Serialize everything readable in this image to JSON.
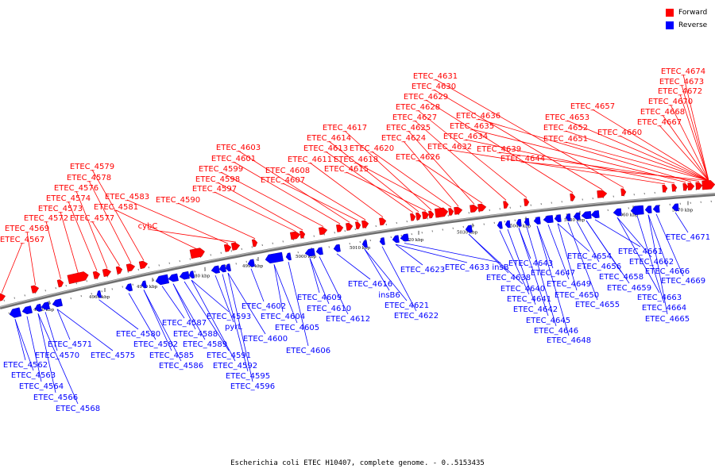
{
  "legend": {
    "forward_label": "Forward",
    "reverse_label": "Reverse",
    "forward_color": "#ff0000",
    "reverse_color": "#0000ff"
  },
  "caption": "Escherichia coli ETEC H10407, complete genome. - 0..5153435",
  "forward_labels": [
    "ETEC_4567",
    "ETEC_4569",
    "ETEC_4572",
    "ETEC_4573",
    "ETEC_4574",
    "ETEC_4576",
    "ETEC_4577",
    "ETEC_4578",
    "ETEC_4579",
    "ETEC_4581",
    "ETEC_4583",
    "cybC",
    "ETEC_4590",
    "ETEC_4597",
    "ETEC_4598",
    "ETEC_4599",
    "ETEC_4601",
    "ETEC_4603",
    "ETEC_4607",
    "ETEC_4608",
    "ETEC_4611",
    "ETEC_4613",
    "ETEC_4614",
    "ETEC_4615",
    "ETEC_4617",
    "ETEC_4618",
    "ETEC_4620",
    "ETEC_4624",
    "ETEC_4625",
    "ETEC_4626",
    "ETEC_4627",
    "ETEC_4628",
    "ETEC_4629",
    "ETEC_4630",
    "ETEC_4631",
    "ETEC_4632",
    "ETEC_4634",
    "ETEC_4635",
    "ETEC_4636",
    "ETEC_4639",
    "ETEC_4644",
    "ETEC_4651",
    "ETEC_4652",
    "ETEC_4653",
    "ETEC_4657",
    "ETEC_4660",
    "ETEC_4667",
    "ETEC_4668",
    "ETEC_4670",
    "ETEC_4672",
    "ETEC_4673",
    "ETEC_4674"
  ],
  "reverse_labels": [
    "ETEC_4562",
    "ETEC_4563",
    "ETEC_4564",
    "ETEC_4566",
    "ETEC_4568",
    "ETEC_4570",
    "ETEC_4571",
    "ETEC_4575",
    "ETEC_4580",
    "ETEC_4582",
    "ETEC_4585",
    "ETEC_4586",
    "ETEC_4587",
    "ETEC_4588",
    "ETEC_4589",
    "ETEC_4591",
    "ETEC_4592",
    "ETEC_4593",
    "pyrL",
    "ETEC_4595",
    "ETEC_4596",
    "ETEC_4600",
    "ETEC_4602",
    "ETEC_4604",
    "ETEC_4605",
    "ETEC_4606",
    "ETEC_4609",
    "ETEC_4610",
    "ETEC_4612",
    "ETEC_4616",
    "insB6",
    "ETEC_4621",
    "ETEC_4622",
    "ETEC_4623",
    "ETEC_4633",
    "insB",
    "ETEC_4638",
    "ETEC_4640",
    "ETEC_4641",
    "ETEC_4642",
    "ETEC_4643",
    "ETEC_4645",
    "ETEC_4646",
    "ETEC_4647",
    "ETEC_4648",
    "ETEC_4649",
    "ETEC_4650",
    "ETEC_4654",
    "ETEC_4655",
    "ETEC_4656",
    "ETEC_4658",
    "ETEC_4659",
    "ETEC_4661",
    "ETEC_4662",
    "ETEC_4663",
    "ETEC_4664",
    "ETEC_4665",
    "ETEC_4666",
    "ETEC_4669",
    "ETEC_4671"
  ],
  "scale_labels": [
    "4950 kbp",
    "4960 kbp",
    "4970 kbp",
    "4980 kbp",
    "4990 kbp",
    "5000 kbp",
    "5010 kbp",
    "5020 kbp",
    "5030 kbp",
    "5040 kbp",
    "5050 kbp",
    "5060 kbp",
    "5070 kbp"
  ]
}
